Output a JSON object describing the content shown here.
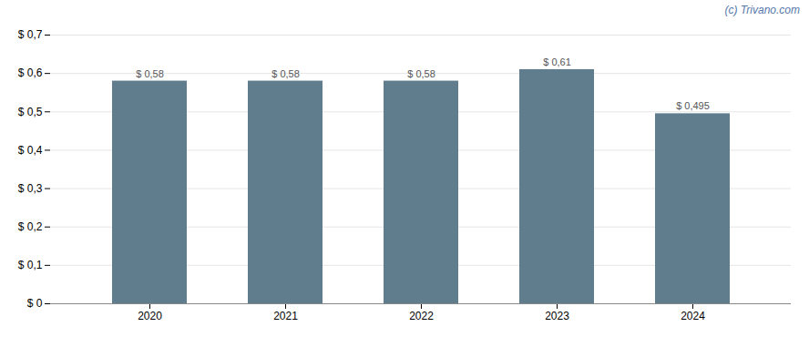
{
  "chart_data": {
    "type": "bar",
    "categories": [
      "2020",
      "2021",
      "2022",
      "2023",
      "2024"
    ],
    "values": [
      0.58,
      0.58,
      0.58,
      0.61,
      0.495
    ],
    "value_labels": [
      "$ 0,58",
      "$ 0,58",
      "$ 0,58",
      "$ 0,61",
      "$ 0,495"
    ],
    "data_labels": true,
    "color": "#5f7d8c",
    "ylim": [
      0,
      0.7
    ],
    "yticks": [
      {
        "value": 0.0,
        "label": "$ 0"
      },
      {
        "value": 0.1,
        "label": "$ 0,1"
      },
      {
        "value": 0.2,
        "label": "$ 0,2"
      },
      {
        "value": 0.3,
        "label": "$ 0,3"
      },
      {
        "value": 0.4,
        "label": "$ 0,4"
      },
      {
        "value": 0.5,
        "label": "$ 0,5"
      },
      {
        "value": 0.6,
        "label": "$ 0,6"
      },
      {
        "value": 0.7,
        "label": "$ 0,7"
      }
    ],
    "grid": true,
    "annotations": [
      "(c) Trivano.com"
    ]
  }
}
